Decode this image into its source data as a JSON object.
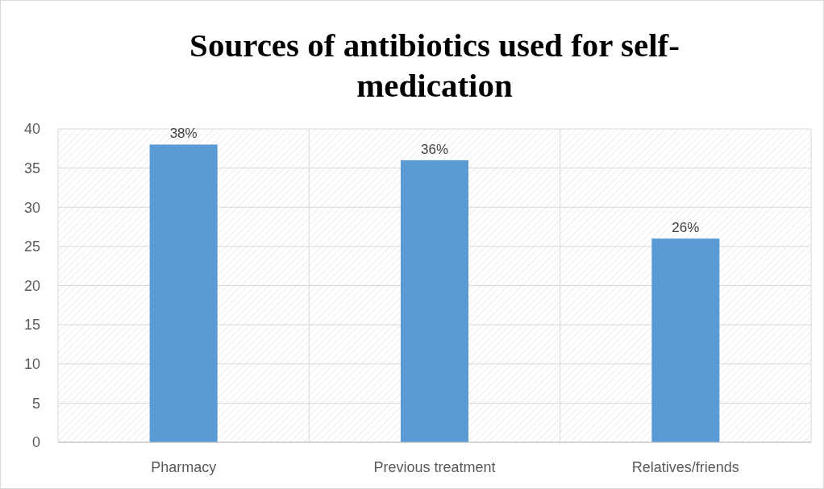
{
  "chart_data": {
    "type": "bar",
    "title": "Sources of antibiotics used for self-medication",
    "categories": [
      "Pharmacy",
      "Previous treatment",
      "Relatives/friends"
    ],
    "values": [
      38,
      36,
      26
    ],
    "color": "#5b9bd5",
    "value_labels": [
      "38%",
      "36%",
      "26%"
    ],
    "ylim": [
      0,
      40
    ],
    "yticks": [
      0,
      5,
      10,
      15,
      20,
      25,
      30,
      35,
      40
    ],
    "grid": true
  }
}
